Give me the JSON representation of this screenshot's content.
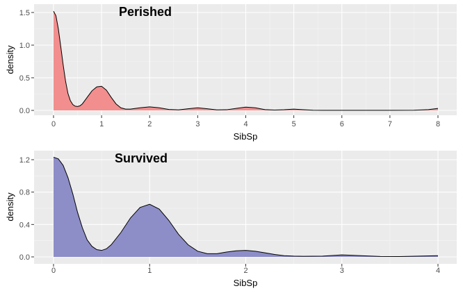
{
  "chart_data": [
    {
      "type": "area",
      "title": "Perished",
      "xlabel": "SibSp",
      "ylabel": "density",
      "xlim": [
        0,
        8
      ],
      "ylim": [
        0,
        1.55
      ],
      "xticks": [
        0,
        1,
        2,
        3,
        4,
        5,
        6,
        7,
        8
      ],
      "yticks": [
        0.0,
        0.5,
        1.0,
        1.5
      ],
      "ytick_labels": [
        "0.0",
        "0.5",
        "1.0",
        "1.5"
      ],
      "grid": true,
      "fill_color": "#f28e8e",
      "line_color": "#000000",
      "series": [
        {
          "x": [
            0,
            0.05,
            0.1,
            0.15,
            0.2,
            0.25,
            0.3,
            0.35,
            0.4,
            0.45,
            0.5,
            0.55,
            0.6,
            0.7,
            0.8,
            0.9,
            1.0,
            1.1,
            1.2,
            1.3,
            1.4,
            1.5,
            1.6,
            1.8,
            2.0,
            2.2,
            2.4,
            2.6,
            2.8,
            3.0,
            3.2,
            3.4,
            3.6,
            3.8,
            4.0,
            4.2,
            4.4,
            4.6,
            4.8,
            5.0,
            5.2,
            5.4,
            5.6,
            6.0,
            6.5,
            7.0,
            7.5,
            7.8,
            8.0
          ],
          "y": [
            1.52,
            1.45,
            1.25,
            0.98,
            0.7,
            0.45,
            0.26,
            0.15,
            0.09,
            0.065,
            0.06,
            0.07,
            0.1,
            0.2,
            0.3,
            0.36,
            0.37,
            0.31,
            0.2,
            0.1,
            0.04,
            0.02,
            0.02,
            0.04,
            0.055,
            0.04,
            0.015,
            0.008,
            0.025,
            0.04,
            0.025,
            0.008,
            0.01,
            0.03,
            0.05,
            0.04,
            0.012,
            0.005,
            0.01,
            0.02,
            0.01,
            0.003,
            0.001,
            0.001,
            0.001,
            0.001,
            0.003,
            0.012,
            0.03
          ]
        }
      ]
    },
    {
      "type": "area",
      "title": "Survived",
      "xlabel": "SibSp",
      "ylabel": "density",
      "xlim": [
        0,
        4
      ],
      "ylim": [
        0,
        1.25
      ],
      "xticks": [
        0,
        1,
        2,
        3,
        4
      ],
      "yticks": [
        0.0,
        0.4,
        0.8,
        1.2
      ],
      "ytick_labels": [
        "0.0",
        "0.4",
        "0.8",
        "1.2"
      ],
      "grid": true,
      "fill_color": "#8d8dc8",
      "line_color": "#000000",
      "series": [
        {
          "x": [
            0,
            0.05,
            0.1,
            0.15,
            0.2,
            0.25,
            0.3,
            0.35,
            0.4,
            0.45,
            0.5,
            0.55,
            0.6,
            0.7,
            0.8,
            0.9,
            1.0,
            1.1,
            1.2,
            1.3,
            1.4,
            1.5,
            1.6,
            1.7,
            1.8,
            1.9,
            2.0,
            2.1,
            2.2,
            2.3,
            2.4,
            2.5,
            2.6,
            2.8,
            3.0,
            3.2,
            3.4,
            3.6,
            3.8,
            4.0
          ],
          "y": [
            1.23,
            1.21,
            1.13,
            0.98,
            0.78,
            0.55,
            0.36,
            0.21,
            0.13,
            0.09,
            0.08,
            0.1,
            0.15,
            0.3,
            0.48,
            0.61,
            0.65,
            0.59,
            0.45,
            0.28,
            0.15,
            0.07,
            0.04,
            0.04,
            0.06,
            0.075,
            0.08,
            0.07,
            0.05,
            0.03,
            0.015,
            0.01,
            0.008,
            0.01,
            0.025,
            0.015,
            0.005,
            0.004,
            0.01,
            0.015
          ]
        }
      ]
    }
  ]
}
